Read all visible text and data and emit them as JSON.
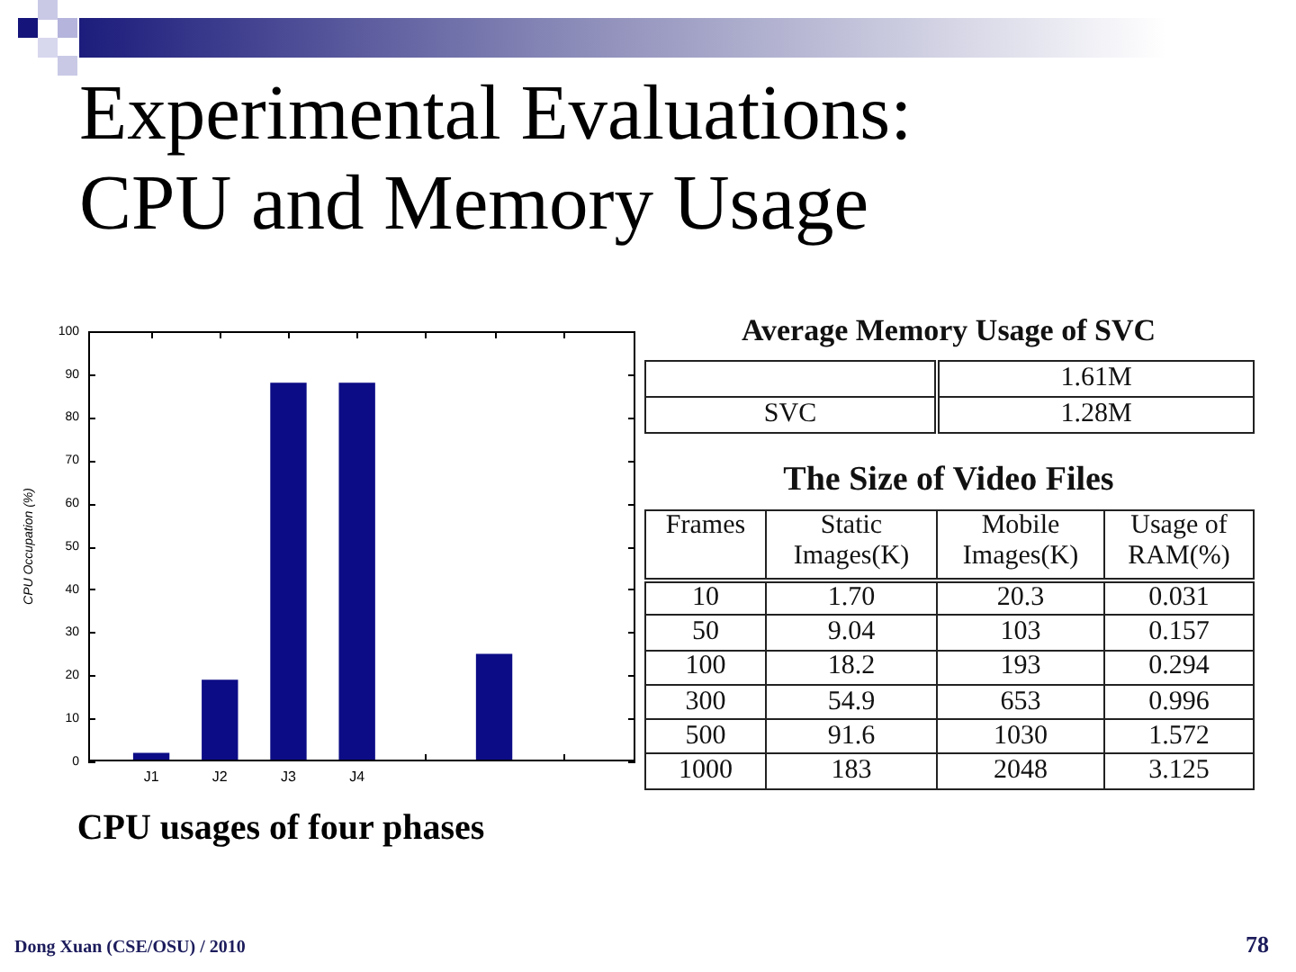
{
  "chart_data": [
    {
      "type": "bar",
      "title": "Experimental Evaluations: CPU and Memory Usage",
      "subtitle": "CPU usages of four phases",
      "ylabel": "CPU Occupation (%)",
      "categories": [
        "J1",
        "J2",
        "J3",
        "J4",
        null,
        null,
        null
      ],
      "values": [
        2,
        19,
        88,
        88,
        null,
        25,
        null
      ],
      "color": "#0c0c86",
      "ylim": [
        0,
        100
      ],
      "yticks": [
        0,
        10,
        20,
        30,
        40,
        50,
        60,
        70,
        80,
        90,
        100
      ],
      "annotations": [
        "Dong Xuan (CSE/OSU) / 2010",
        "78"
      ]
    },
    {
      "type": "other",
      "title": "Average Memory Usage of SVC",
      "y_categories": [
        null,
        "SVC"
      ],
      "annotations": [
        "1.61M",
        "1.28M"
      ]
    },
    {
      "type": "other",
      "title": "The Size of Video Files",
      "categories": [
        "Frames",
        "Static Images(K)",
        "Mobile Images(K)",
        "Usage of RAM(%)"
      ],
      "annotations": [
        "10",
        "1.70",
        "20.3",
        "0.031",
        "50",
        "9.04",
        "103",
        "0.157",
        "100",
        "18.2",
        "193",
        "0.294",
        "300",
        "54.9",
        "653",
        "0.996",
        "500",
        "91.6",
        "1030",
        "1.572",
        "1000",
        "183",
        "2048",
        "3.125"
      ]
    }
  ]
}
